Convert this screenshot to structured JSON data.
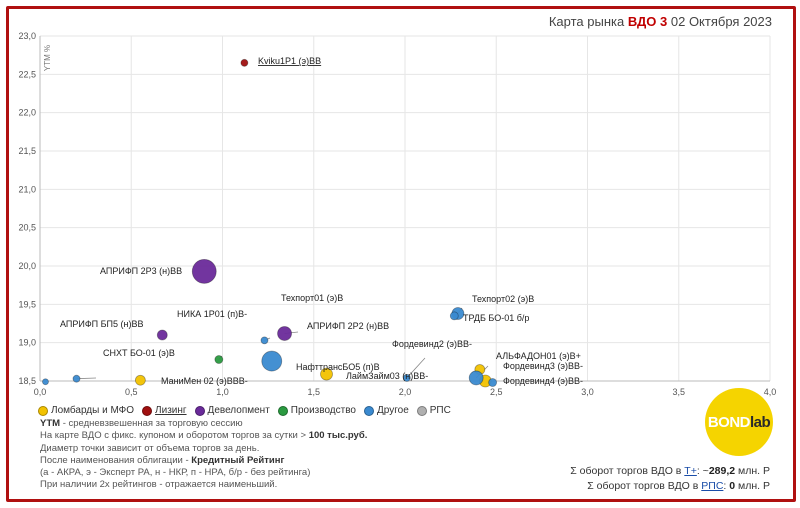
{
  "header": {
    "title_prefix": "Карта рынка ",
    "title_brand": "ВДО 3",
    "title_date": " 02 Октября 2023"
  },
  "chart_data": {
    "type": "scatter",
    "title": "Карта рынка ВДО 3 02 Октября 2023",
    "ylabel": "YTM %",
    "xlabel": "",
    "xlim": [
      0,
      4
    ],
    "ylim": [
      18.5,
      23
    ],
    "x_ticks": [
      "0,0",
      "0,5",
      "1,0",
      "1,5",
      "2,0",
      "2,5",
      "3,0",
      "3,5",
      "4,0"
    ],
    "y_ticks": [
      "18,5",
      "19,0",
      "19,5",
      "20,0",
      "20,5",
      "21,0",
      "21,5",
      "22,0",
      "22,5",
      "23,0"
    ],
    "series": [
      {
        "name": "Ломбарды и МФО",
        "color": "#f2c200",
        "points": [
          {
            "label": "МаниМен 02 (э)ВВВ-",
            "x": 0.55,
            "y": 18.51,
            "r": 5
          },
          {
            "label": "НафттрансБО5 (п)В",
            "x": 1.57,
            "y": 18.59,
            "r": 6
          },
          {
            "label": "Фордевинд2 (э)ВВ-",
            "x": 2.41,
            "y": 18.65,
            "r": 5
          },
          {
            "label": "Фордевинд3 (э)ВВ-",
            "x": 2.44,
            "y": 18.5,
            "r": 6
          }
        ]
      },
      {
        "name": "Лизинг",
        "color": "#a01010",
        "points": [
          {
            "label": "Kviku1P1 (э)ВВ",
            "x": 1.12,
            "y": 22.65,
            "r": 3.5
          }
        ]
      },
      {
        "name": "Девелопмент",
        "color": "#6a2a9a",
        "points": [
          {
            "label": "АПРИФП 2Р3 (н)ВВ",
            "x": 0.9,
            "y": 19.93,
            "r": 12
          },
          {
            "label": "АПРИФП БП5 (н)ВВ",
            "x": 0.67,
            "y": 19.1,
            "r": 5
          },
          {
            "label": "АПРИФП 2Р2 (н)ВВ",
            "x": 1.34,
            "y": 19.12,
            "r": 7
          }
        ]
      },
      {
        "name": "Производство",
        "color": "#2a9a40",
        "points": [
          {
            "label": "НИКА 1Р01 (п)В-",
            "x": 0.98,
            "y": 18.78,
            "r": 4
          }
        ]
      },
      {
        "name": "Другое",
        "color": "#3a8ad0",
        "points": [
          {
            "label": "Техпорт01 (э)В",
            "x": 1.23,
            "y": 19.03,
            "r": 3.5
          },
          {
            "label": "Техпорт02 (э)В",
            "x": 2.29,
            "y": 19.38,
            "r": 6
          },
          {
            "label": "ТРДБ БО-01 б/р",
            "x": 2.27,
            "y": 19.35,
            "r": 4
          },
          {
            "label": "СНХТ БО-01 (э)В",
            "x": 0.2,
            "y": 18.53,
            "r": 3.5
          },
          {
            "label": "ЛаймЗайм03 (н)ВВ-",
            "x": 2.01,
            "y": 18.54,
            "r": 3.5
          },
          {
            "label": "НафттрансБО5 (п)В",
            "x": 1.27,
            "y": 18.76,
            "r": 10
          },
          {
            "label": "АЛЬФАДОН01 (э)В+",
            "x": 2.39,
            "y": 18.54,
            "r": 7
          },
          {
            "label": "Фордевинд4 (э)ВВ-",
            "x": 2.48,
            "y": 18.48,
            "r": 4
          },
          {
            "label": "",
            "x": 0.03,
            "y": 18.49,
            "r": 3
          }
        ]
      }
    ],
    "annotations": [
      {
        "text": "Kviku1P1 (э)ВВ",
        "underline": true
      },
      {
        "text": "АПРИФП 2Р3 (н)ВВ"
      },
      {
        "text": "Техпорт01 (э)В"
      },
      {
        "text": "НИКА 1Р01 (п)В-"
      },
      {
        "text": "АПРИФП БП5 (н)ВВ"
      },
      {
        "text": "АПРИФП 2Р2 (н)ВВ"
      },
      {
        "text": "СНХТ БО-01 (э)В"
      },
      {
        "text": "МаниМен 02 (э)ВВВ-"
      },
      {
        "text": "НафттрансБО5 (п)В"
      },
      {
        "text": "Техпорт02 (э)В"
      },
      {
        "text": "ТРДБ БО-01 б/р"
      },
      {
        "text": "Фордевинд2 (э)ВВ-"
      },
      {
        "text": "АЛЬФАДОН01 (э)В+"
      },
      {
        "text": "Фордевинд3 (э)ВВ-"
      },
      {
        "text": "ЛаймЗайм03 (н)ВВ-"
      },
      {
        "text": "Фордевинд4 (э)ВВ-"
      }
    ]
  },
  "legend": {
    "items": [
      {
        "label": "Ломбарды и МФО",
        "color": "#f2c200",
        "underline": false
      },
      {
        "label": "Лизинг",
        "color": "#a01010",
        "underline": true
      },
      {
        "label": "Девелопмент",
        "color": "#6a2a9a",
        "underline": false
      },
      {
        "label": "Производство",
        "color": "#2a9a40",
        "underline": false
      },
      {
        "label": "Другое",
        "color": "#3a8ad0",
        "underline": false
      },
      {
        "label": "РПС",
        "color": "#b0b0b0",
        "underline": false
      }
    ]
  },
  "notes": {
    "ytm_key": "YTM",
    "ytm_text": " - средневзвешенная за торговую сессию",
    "line2_text": "На карте ВДО с фикс. купоном и оборотом торгов за сутки > ",
    "line2_bold": "100 тыс.руб.",
    "line3": "Диаметр точки зависит от объема торгов за день.",
    "line4_text": "После наименования облигации - ",
    "line4_bold": "Кредитный Рейтинг",
    "line5": "(а - АКРА, э - Эксперт РА, н - НКР, п - НРА, б/р - без рейтинга)",
    "line6": "При наличии 2х рейтингов - отражается наименьший."
  },
  "totals": {
    "line1_prefix": "Σ оборот торгов ВДО в ",
    "line1_link": "Т+",
    "line1_mid": ": ~",
    "line1_value": "289,2",
    "line1_suffix": " млн. Р",
    "line2_prefix": "Σ оборот торгов ВДО в ",
    "line2_link": "РПС",
    "line2_mid": ": ",
    "line2_value": "0",
    "line2_suffix": " млн. Р"
  },
  "logo": {
    "part1": "BOND",
    "part2": "lab"
  }
}
